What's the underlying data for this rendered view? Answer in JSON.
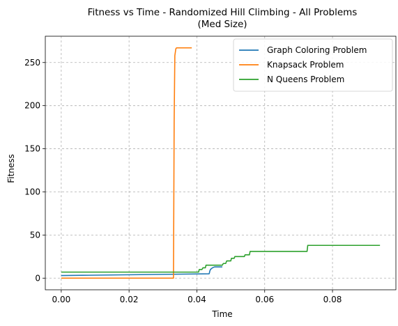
{
  "chart_data": {
    "type": "line",
    "title": "Fitness vs Time - Randomized Hill Climbing - All Problems",
    "subtitle": "(Med Size)",
    "xlabel": "Time",
    "ylabel": "Fitness",
    "xlim": [
      -0.0047,
      0.0987
    ],
    "ylim": [
      -13.5,
      280.5
    ],
    "xticks": [
      0.0,
      0.02,
      0.04,
      0.06,
      0.08
    ],
    "xtick_labels": [
      "0.00",
      "0.02",
      "0.04",
      "0.06",
      "0.08"
    ],
    "yticks": [
      0,
      50,
      100,
      150,
      200,
      250
    ],
    "ytick_labels": [
      "0",
      "50",
      "100",
      "150",
      "200",
      "250"
    ],
    "grid": true,
    "legend_position": "top-right",
    "series": [
      {
        "name": "Graph Coloring Problem",
        "color": "#1f77b4",
        "x": [
          0.0,
          0.0436,
          0.0437,
          0.0438,
          0.044,
          0.0443,
          0.0446,
          0.0449,
          0.0452,
          0.0475
        ],
        "y": [
          3,
          5,
          6,
          8,
          10,
          11,
          12,
          12.5,
          13,
          13
        ]
      },
      {
        "name": "Knapsack Problem",
        "color": "#ff7f0e",
        "x": [
          0.0,
          0.0331,
          0.0332,
          0.0333,
          0.0335,
          0.0338,
          0.034,
          0.0385
        ],
        "y": [
          0,
          0,
          90,
          180,
          258,
          266,
          267,
          267
        ]
      },
      {
        "name": "N Queens Problem",
        "color": "#2ca02c",
        "x": [
          0.0,
          0.0405,
          0.0407,
          0.0415,
          0.0418,
          0.0425,
          0.0427,
          0.0475,
          0.0478,
          0.0485,
          0.0488,
          0.05,
          0.0502,
          0.051,
          0.0512,
          0.054,
          0.0542,
          0.0555,
          0.0557,
          0.0585,
          0.0587,
          0.0725,
          0.0727,
          0.094
        ],
        "y": [
          7,
          7,
          10,
          10,
          12,
          12,
          15,
          15,
          17,
          17,
          20,
          20,
          23,
          23,
          25,
          25,
          27,
          27,
          31,
          31,
          31,
          31,
          38,
          38
        ]
      }
    ]
  }
}
